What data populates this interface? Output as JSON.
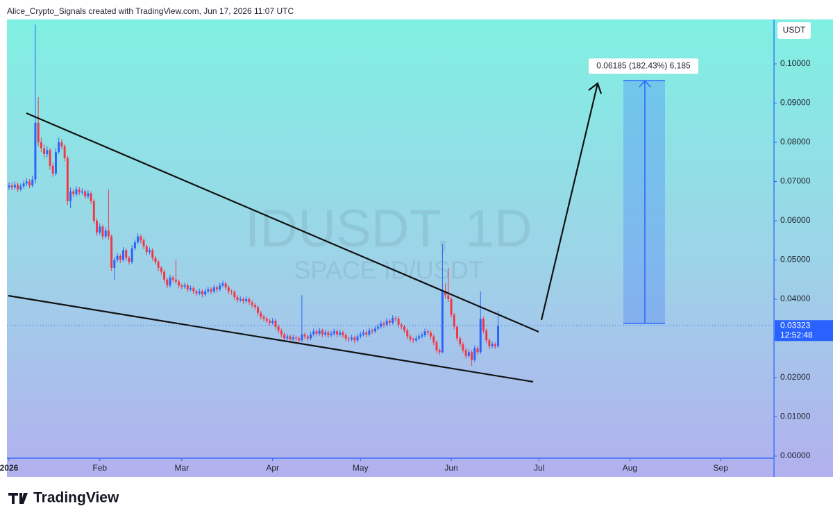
{
  "header": {
    "text": "Alice_Crypto_Signals created with TradingView.com, Jun 17, 2026 11:07 UTC"
  },
  "chart_data": {
    "type": "candlestick",
    "title": "IDUSDT, 1D",
    "subtitle": "SPACE ID/USDT",
    "y_axis_label": "USDT",
    "up_color": "#2962ff",
    "down_color": "#f23645",
    "ohlc": [
      [
        0.0685,
        0.0698,
        0.0678,
        0.069
      ],
      [
        0.069,
        0.0698,
        0.0678,
        0.0685
      ],
      [
        0.0685,
        0.07,
        0.068,
        0.0692
      ],
      [
        0.0692,
        0.0698,
        0.0673,
        0.068
      ],
      [
        0.068,
        0.0695,
        0.0675,
        0.0688
      ],
      [
        0.0688,
        0.0703,
        0.0682,
        0.0695
      ],
      [
        0.0695,
        0.0708,
        0.0688,
        0.07
      ],
      [
        0.07,
        0.0706,
        0.0683,
        0.069
      ],
      [
        0.069,
        0.0715,
        0.0685,
        0.0705
      ],
      [
        0.0705,
        0.11,
        0.0695,
        0.085
      ],
      [
        0.085,
        0.0915,
        0.079,
        0.08
      ],
      [
        0.08,
        0.0812,
        0.0775,
        0.0785
      ],
      [
        0.0785,
        0.0795,
        0.076,
        0.077
      ],
      [
        0.077,
        0.079,
        0.0762,
        0.078
      ],
      [
        0.078,
        0.0786,
        0.073,
        0.074
      ],
      [
        0.074,
        0.0748,
        0.0712,
        0.072
      ],
      [
        0.072,
        0.0785,
        0.0715,
        0.0775
      ],
      [
        0.0775,
        0.0812,
        0.077,
        0.08
      ],
      [
        0.08,
        0.0808,
        0.0782,
        0.079
      ],
      [
        0.079,
        0.0795,
        0.0752,
        0.076
      ],
      [
        0.076,
        0.0765,
        0.064,
        0.065
      ],
      [
        0.065,
        0.0685,
        0.0632,
        0.0675
      ],
      [
        0.0675,
        0.0682,
        0.066,
        0.0668
      ],
      [
        0.0668,
        0.0688,
        0.0662,
        0.068
      ],
      [
        0.068,
        0.0686,
        0.0665,
        0.0672
      ],
      [
        0.0672,
        0.0683,
        0.0666,
        0.0675
      ],
      [
        0.0675,
        0.068,
        0.0655,
        0.0662
      ],
      [
        0.0662,
        0.0678,
        0.0656,
        0.067
      ],
      [
        0.067,
        0.0675,
        0.0642,
        0.065
      ],
      [
        0.065,
        0.0655,
        0.0592,
        0.06
      ],
      [
        0.06,
        0.0606,
        0.0562,
        0.057
      ],
      [
        0.057,
        0.0593,
        0.0564,
        0.0585
      ],
      [
        0.0585,
        0.059,
        0.0552,
        0.056
      ],
      [
        0.056,
        0.0583,
        0.0555,
        0.0575
      ],
      [
        0.0575,
        0.068,
        0.0552,
        0.056
      ],
      [
        0.056,
        0.0565,
        0.0472,
        0.048
      ],
      [
        0.048,
        0.0508,
        0.045,
        0.05
      ],
      [
        0.05,
        0.0518,
        0.0494,
        0.051
      ],
      [
        0.051,
        0.0515,
        0.0492,
        0.05
      ],
      [
        0.05,
        0.0533,
        0.0495,
        0.0525
      ],
      [
        0.0525,
        0.053,
        0.0498,
        0.0505
      ],
      [
        0.0505,
        0.051,
        0.0488,
        0.0495
      ],
      [
        0.0495,
        0.0538,
        0.049,
        0.053
      ],
      [
        0.053,
        0.0552,
        0.0525,
        0.0545
      ],
      [
        0.0545,
        0.0568,
        0.054,
        0.056
      ],
      [
        0.056,
        0.0565,
        0.0542,
        0.055
      ],
      [
        0.055,
        0.0555,
        0.0528,
        0.0535
      ],
      [
        0.0535,
        0.054,
        0.0512,
        0.052
      ],
      [
        0.052,
        0.0532,
        0.0514,
        0.0525
      ],
      [
        0.0525,
        0.053,
        0.0498,
        0.0505
      ],
      [
        0.0505,
        0.051,
        0.0488,
        0.0495
      ],
      [
        0.0495,
        0.05,
        0.0472,
        0.048
      ],
      [
        0.048,
        0.0485,
        0.0463,
        0.047
      ],
      [
        0.047,
        0.0475,
        0.0442,
        0.045
      ],
      [
        0.045,
        0.0455,
        0.0428,
        0.0435
      ],
      [
        0.0435,
        0.0462,
        0.043,
        0.0455
      ],
      [
        0.0455,
        0.046,
        0.0443,
        0.045
      ],
      [
        0.045,
        0.05,
        0.0438,
        0.0445
      ],
      [
        0.0445,
        0.045,
        0.0428,
        0.0435
      ],
      [
        0.0435,
        0.044,
        0.0425,
        0.0432
      ],
      [
        0.0432,
        0.0442,
        0.0427,
        0.0435
      ],
      [
        0.0435,
        0.044,
        0.0418,
        0.0425
      ],
      [
        0.0425,
        0.0435,
        0.042,
        0.0428
      ],
      [
        0.0428,
        0.0433,
        0.0413,
        0.042
      ],
      [
        0.042,
        0.0425,
        0.0408,
        0.0415
      ],
      [
        0.0415,
        0.0427,
        0.041,
        0.042
      ],
      [
        0.042,
        0.0425,
        0.0405,
        0.0412
      ],
      [
        0.0412,
        0.0427,
        0.0407,
        0.042
      ],
      [
        0.042,
        0.0432,
        0.0415,
        0.0425
      ],
      [
        0.0425,
        0.043,
        0.0413,
        0.042
      ],
      [
        0.042,
        0.0437,
        0.0415,
        0.043
      ],
      [
        0.043,
        0.0435,
        0.0418,
        0.0425
      ],
      [
        0.0425,
        0.0442,
        0.042,
        0.0435
      ],
      [
        0.0435,
        0.0447,
        0.043,
        0.044
      ],
      [
        0.044,
        0.0445,
        0.0423,
        0.043
      ],
      [
        0.043,
        0.0435,
        0.0413,
        0.042
      ],
      [
        0.042,
        0.0425,
        0.0411,
        0.0418
      ],
      [
        0.0418,
        0.0423,
        0.0398,
        0.0405
      ],
      [
        0.0405,
        0.041,
        0.0391,
        0.0398
      ],
      [
        0.0398,
        0.0407,
        0.0393,
        0.04
      ],
      [
        0.04,
        0.0405,
        0.0388,
        0.0395
      ],
      [
        0.0395,
        0.0407,
        0.039,
        0.04
      ],
      [
        0.04,
        0.0405,
        0.0385,
        0.0392
      ],
      [
        0.0392,
        0.0397,
        0.0378,
        0.0385
      ],
      [
        0.0385,
        0.039,
        0.0373,
        0.038
      ],
      [
        0.038,
        0.0385,
        0.0358,
        0.0365
      ],
      [
        0.0365,
        0.037,
        0.0348,
        0.0355
      ],
      [
        0.0355,
        0.036,
        0.0343,
        0.035
      ],
      [
        0.035,
        0.0355,
        0.0338,
        0.0345
      ],
      [
        0.0345,
        0.035,
        0.0333,
        0.034
      ],
      [
        0.034,
        0.0352,
        0.0335,
        0.0345
      ],
      [
        0.0345,
        0.035,
        0.0323,
        0.033
      ],
      [
        0.033,
        0.0335,
        0.0313,
        0.032
      ],
      [
        0.032,
        0.0325,
        0.0303,
        0.031
      ],
      [
        0.031,
        0.0315,
        0.0293,
        0.03
      ],
      [
        0.03,
        0.0312,
        0.0295,
        0.0305
      ],
      [
        0.0305,
        0.031,
        0.0291,
        0.0298
      ],
      [
        0.0298,
        0.0309,
        0.0293,
        0.0302
      ],
      [
        0.0302,
        0.0307,
        0.0293,
        0.03
      ],
      [
        0.03,
        0.0305,
        0.0288,
        0.0295
      ],
      [
        0.0295,
        0.041,
        0.029,
        0.031
      ],
      [
        0.031,
        0.0315,
        0.0298,
        0.0305
      ],
      [
        0.0305,
        0.031,
        0.0293,
        0.03
      ],
      [
        0.03,
        0.0317,
        0.0295,
        0.031
      ],
      [
        0.031,
        0.0325,
        0.0305,
        0.0318
      ],
      [
        0.0318,
        0.0323,
        0.0305,
        0.0312
      ],
      [
        0.0312,
        0.0327,
        0.0307,
        0.032
      ],
      [
        0.032,
        0.0325,
        0.0303,
        0.031
      ],
      [
        0.031,
        0.0322,
        0.0305,
        0.0315
      ],
      [
        0.0315,
        0.032,
        0.0301,
        0.0308
      ],
      [
        0.0308,
        0.0319,
        0.0303,
        0.0312
      ],
      [
        0.0312,
        0.0325,
        0.0307,
        0.0318
      ],
      [
        0.0318,
        0.0323,
        0.0303,
        0.031
      ],
      [
        0.031,
        0.0322,
        0.0305,
        0.0315
      ],
      [
        0.0315,
        0.032,
        0.0301,
        0.0308
      ],
      [
        0.0308,
        0.0313,
        0.0293,
        0.03
      ],
      [
        0.03,
        0.0305,
        0.0291,
        0.0298
      ],
      [
        0.0298,
        0.0309,
        0.0293,
        0.0302
      ],
      [
        0.0302,
        0.0307,
        0.0288,
        0.0295
      ],
      [
        0.0295,
        0.0312,
        0.029,
        0.0305
      ],
      [
        0.0305,
        0.0317,
        0.03,
        0.031
      ],
      [
        0.031,
        0.0322,
        0.0305,
        0.0315
      ],
      [
        0.0315,
        0.032,
        0.0303,
        0.031
      ],
      [
        0.031,
        0.0327,
        0.0305,
        0.032
      ],
      [
        0.032,
        0.0325,
        0.0311,
        0.0318
      ],
      [
        0.0318,
        0.0332,
        0.0313,
        0.0325
      ],
      [
        0.0325,
        0.0337,
        0.032,
        0.033
      ],
      [
        0.033,
        0.0345,
        0.0325,
        0.0338
      ],
      [
        0.0338,
        0.0343,
        0.0328,
        0.0335
      ],
      [
        0.0335,
        0.0352,
        0.033,
        0.0345
      ],
      [
        0.0345,
        0.035,
        0.0333,
        0.034
      ],
      [
        0.034,
        0.0359,
        0.0335,
        0.0352
      ],
      [
        0.0352,
        0.0357,
        0.0343,
        0.035
      ],
      [
        0.035,
        0.0355,
        0.0328,
        0.0335
      ],
      [
        0.0335,
        0.034,
        0.0323,
        0.033
      ],
      [
        0.033,
        0.0335,
        0.0313,
        0.032
      ],
      [
        0.032,
        0.0325,
        0.0298,
        0.0305
      ],
      [
        0.0305,
        0.031,
        0.0291,
        0.0298
      ],
      [
        0.0298,
        0.0303,
        0.0288,
        0.0295
      ],
      [
        0.0295,
        0.0307,
        0.029,
        0.03
      ],
      [
        0.03,
        0.0312,
        0.0295,
        0.0305
      ],
      [
        0.0305,
        0.0315,
        0.03,
        0.0308
      ],
      [
        0.0308,
        0.0325,
        0.0303,
        0.0318
      ],
      [
        0.0318,
        0.0323,
        0.0308,
        0.0315
      ],
      [
        0.0315,
        0.032,
        0.0298,
        0.0305
      ],
      [
        0.0305,
        0.031,
        0.0283,
        0.029
      ],
      [
        0.029,
        0.0295,
        0.0263,
        0.027
      ],
      [
        0.027,
        0.0275,
        0.0258,
        0.0265
      ],
      [
        0.0265,
        0.054,
        0.0262,
        0.042
      ],
      [
        0.042,
        0.044,
        0.0402,
        0.041
      ],
      [
        0.041,
        0.048,
        0.0393,
        0.04
      ],
      [
        0.04,
        0.0405,
        0.0353,
        0.036
      ],
      [
        0.036,
        0.0365,
        0.0323,
        0.033
      ],
      [
        0.033,
        0.0335,
        0.0293,
        0.03
      ],
      [
        0.03,
        0.0305,
        0.0278,
        0.0285
      ],
      [
        0.0285,
        0.029,
        0.0263,
        0.027
      ],
      [
        0.027,
        0.0275,
        0.0248,
        0.0255
      ],
      [
        0.0255,
        0.0272,
        0.025,
        0.0265
      ],
      [
        0.0265,
        0.027,
        0.023,
        0.0245
      ],
      [
        0.0245,
        0.0282,
        0.024,
        0.0275
      ],
      [
        0.0275,
        0.028,
        0.0258,
        0.0265
      ],
      [
        0.0265,
        0.042,
        0.026,
        0.035
      ],
      [
        0.035,
        0.0355,
        0.0313,
        0.032
      ],
      [
        0.032,
        0.0325,
        0.0288,
        0.0295
      ],
      [
        0.0295,
        0.03,
        0.0273,
        0.028
      ],
      [
        0.028,
        0.0292,
        0.0275,
        0.0285
      ],
      [
        0.0285,
        0.029,
        0.0273,
        0.028
      ],
      [
        0.028,
        0.037,
        0.0276,
        0.03323
      ]
    ],
    "xlim": [
      -0.7,
      261.2
    ],
    "xticks": [
      {
        "value": 0,
        "label": "2026"
      },
      {
        "value": 31,
        "label": "Feb"
      },
      {
        "value": 59,
        "label": "Mar"
      },
      {
        "value": 90,
        "label": "Apr"
      },
      {
        "value": 120,
        "label": "May"
      },
      {
        "value": 151,
        "label": "Jun"
      },
      {
        "value": 181,
        "label": "Jul"
      },
      {
        "value": 212,
        "label": "Aug"
      },
      {
        "value": 243,
        "label": "Sep"
      }
    ],
    "ylim": [
      -0.00053,
      0.11133
    ],
    "yticks": [
      {
        "value": 0,
        "label": "0.00000"
      },
      {
        "value": 0.01,
        "label": "0.01000"
      },
      {
        "value": 0.02,
        "label": "0.02000"
      },
      {
        "value": 0.03,
        "label": "0.03000"
      },
      {
        "value": 0.04,
        "label": "0.04000"
      },
      {
        "value": 0.05,
        "label": "0.05000"
      },
      {
        "value": 0.06,
        "label": "0.06000"
      },
      {
        "value": 0.07,
        "label": "0.07000"
      },
      {
        "value": 0.08,
        "label": "0.08000"
      },
      {
        "value": 0.09,
        "label": "0.09000"
      },
      {
        "value": 0.1,
        "label": "0.10000"
      }
    ],
    "last_price": 0.03323,
    "countdown": "12:52:48",
    "measure": {
      "from": 0.03385,
      "to": 0.0957,
      "label": "0.06185 (182.43%) 6,185"
    }
  },
  "footer": {
    "brand": "TradingView"
  }
}
